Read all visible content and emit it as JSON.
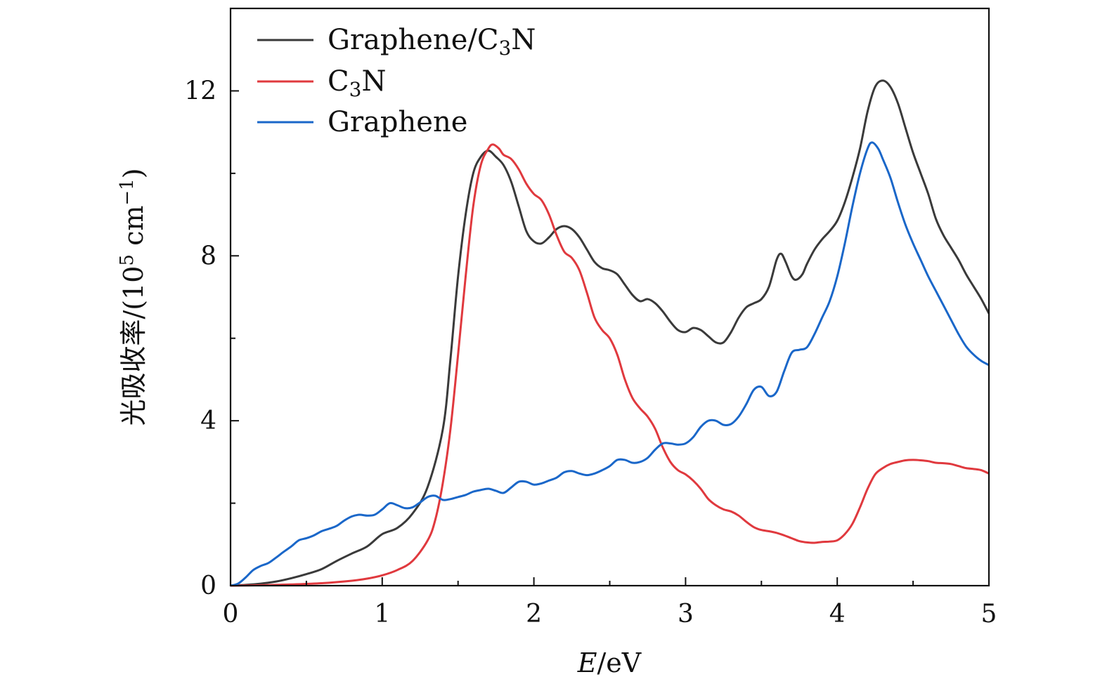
{
  "chart_data": {
    "type": "line",
    "title": "",
    "xlabel": {
      "italic": "E",
      "unit": "/eV"
    },
    "ylabel": {
      "main": "光吸收率/(10",
      "sup_exp": "5",
      "tail": " cm",
      "sup_inv": "−1",
      "close": ")"
    },
    "xlim": [
      0,
      5
    ],
    "ylim": [
      0,
      14
    ],
    "x_ticks": [
      0,
      1,
      2,
      3,
      4,
      5
    ],
    "x_tick_labels": [
      "0",
      "1",
      "2",
      "3",
      "4",
      "5"
    ],
    "y_ticks": [
      0,
      4,
      8,
      12
    ],
    "y_tick_labels": [
      "0",
      "4",
      "8",
      "12"
    ],
    "grid": false,
    "legend_position": "top-left",
    "series": [
      {
        "name": "Graphene/C3N",
        "legend": {
          "pre": "Graphene/C",
          "sub": "3",
          "post": "N"
        },
        "color": "#3a3a3a",
        "points": [
          [
            0,
            0
          ],
          [
            0.1,
            0.02
          ],
          [
            0.2,
            0.05
          ],
          [
            0.3,
            0.1
          ],
          [
            0.4,
            0.18
          ],
          [
            0.5,
            0.28
          ],
          [
            0.6,
            0.4
          ],
          [
            0.7,
            0.6
          ],
          [
            0.8,
            0.78
          ],
          [
            0.9,
            0.95
          ],
          [
            1.0,
            1.25
          ],
          [
            1.1,
            1.4
          ],
          [
            1.2,
            1.75
          ],
          [
            1.3,
            2.4
          ],
          [
            1.4,
            3.8
          ],
          [
            1.45,
            5.5
          ],
          [
            1.5,
            7.5
          ],
          [
            1.55,
            9.0
          ],
          [
            1.6,
            10.0
          ],
          [
            1.65,
            10.4
          ],
          [
            1.7,
            10.55
          ],
          [
            1.75,
            10.4
          ],
          [
            1.8,
            10.2
          ],
          [
            1.85,
            9.8
          ],
          [
            1.9,
            9.2
          ],
          [
            1.95,
            8.6
          ],
          [
            2.0,
            8.35
          ],
          [
            2.05,
            8.3
          ],
          [
            2.1,
            8.45
          ],
          [
            2.15,
            8.65
          ],
          [
            2.2,
            8.72
          ],
          [
            2.25,
            8.65
          ],
          [
            2.3,
            8.45
          ],
          [
            2.35,
            8.15
          ],
          [
            2.4,
            7.85
          ],
          [
            2.45,
            7.7
          ],
          [
            2.5,
            7.65
          ],
          [
            2.55,
            7.55
          ],
          [
            2.6,
            7.3
          ],
          [
            2.65,
            7.05
          ],
          [
            2.7,
            6.9
          ],
          [
            2.75,
            6.95
          ],
          [
            2.8,
            6.85
          ],
          [
            2.85,
            6.65
          ],
          [
            2.9,
            6.4
          ],
          [
            2.95,
            6.2
          ],
          [
            3.0,
            6.15
          ],
          [
            3.05,
            6.25
          ],
          [
            3.1,
            6.2
          ],
          [
            3.15,
            6.05
          ],
          [
            3.2,
            5.9
          ],
          [
            3.25,
            5.9
          ],
          [
            3.3,
            6.15
          ],
          [
            3.35,
            6.5
          ],
          [
            3.4,
            6.75
          ],
          [
            3.45,
            6.85
          ],
          [
            3.5,
            6.95
          ],
          [
            3.55,
            7.25
          ],
          [
            3.6,
            7.9
          ],
          [
            3.63,
            8.05
          ],
          [
            3.66,
            7.85
          ],
          [
            3.7,
            7.5
          ],
          [
            3.73,
            7.42
          ],
          [
            3.77,
            7.55
          ],
          [
            3.8,
            7.8
          ],
          [
            3.85,
            8.15
          ],
          [
            3.9,
            8.4
          ],
          [
            3.95,
            8.6
          ],
          [
            4.0,
            8.85
          ],
          [
            4.05,
            9.3
          ],
          [
            4.1,
            9.9
          ],
          [
            4.15,
            10.6
          ],
          [
            4.2,
            11.5
          ],
          [
            4.25,
            12.1
          ],
          [
            4.3,
            12.25
          ],
          [
            4.35,
            12.1
          ],
          [
            4.4,
            11.7
          ],
          [
            4.45,
            11.1
          ],
          [
            4.5,
            10.5
          ],
          [
            4.55,
            10.0
          ],
          [
            4.6,
            9.5
          ],
          [
            4.65,
            8.9
          ],
          [
            4.7,
            8.5
          ],
          [
            4.75,
            8.2
          ],
          [
            4.8,
            7.9
          ],
          [
            4.85,
            7.55
          ],
          [
            4.9,
            7.25
          ],
          [
            4.95,
            6.95
          ],
          [
            5.0,
            6.6
          ]
        ]
      },
      {
        "name": "C3N",
        "legend": {
          "pre": "C",
          "sub": "3",
          "post": "N"
        },
        "color": "#e0393e",
        "points": [
          [
            0,
            0
          ],
          [
            0.2,
            0.01
          ],
          [
            0.4,
            0.03
          ],
          [
            0.6,
            0.06
          ],
          [
            0.8,
            0.12
          ],
          [
            0.9,
            0.17
          ],
          [
            1.0,
            0.25
          ],
          [
            1.1,
            0.38
          ],
          [
            1.2,
            0.6
          ],
          [
            1.3,
            1.1
          ],
          [
            1.35,
            1.6
          ],
          [
            1.4,
            2.5
          ],
          [
            1.45,
            3.8
          ],
          [
            1.5,
            5.6
          ],
          [
            1.55,
            7.5
          ],
          [
            1.6,
            9.2
          ],
          [
            1.65,
            10.2
          ],
          [
            1.7,
            10.6
          ],
          [
            1.73,
            10.7
          ],
          [
            1.77,
            10.6
          ],
          [
            1.8,
            10.45
          ],
          [
            1.85,
            10.35
          ],
          [
            1.9,
            10.1
          ],
          [
            1.95,
            9.75
          ],
          [
            2.0,
            9.5
          ],
          [
            2.05,
            9.35
          ],
          [
            2.1,
            9.0
          ],
          [
            2.15,
            8.5
          ],
          [
            2.2,
            8.1
          ],
          [
            2.25,
            7.95
          ],
          [
            2.3,
            7.65
          ],
          [
            2.35,
            7.1
          ],
          [
            2.4,
            6.5
          ],
          [
            2.45,
            6.2
          ],
          [
            2.5,
            6.0
          ],
          [
            2.55,
            5.6
          ],
          [
            2.6,
            5.0
          ],
          [
            2.65,
            4.55
          ],
          [
            2.7,
            4.3
          ],
          [
            2.75,
            4.1
          ],
          [
            2.8,
            3.8
          ],
          [
            2.85,
            3.35
          ],
          [
            2.9,
            3.0
          ],
          [
            2.95,
            2.8
          ],
          [
            3.0,
            2.7
          ],
          [
            3.05,
            2.55
          ],
          [
            3.1,
            2.35
          ],
          [
            3.15,
            2.1
          ],
          [
            3.2,
            1.95
          ],
          [
            3.25,
            1.85
          ],
          [
            3.3,
            1.8
          ],
          [
            3.35,
            1.7
          ],
          [
            3.4,
            1.55
          ],
          [
            3.45,
            1.42
          ],
          [
            3.5,
            1.35
          ],
          [
            3.55,
            1.32
          ],
          [
            3.6,
            1.28
          ],
          [
            3.65,
            1.22
          ],
          [
            3.7,
            1.15
          ],
          [
            3.75,
            1.08
          ],
          [
            3.8,
            1.05
          ],
          [
            3.85,
            1.04
          ],
          [
            3.9,
            1.06
          ],
          [
            3.95,
            1.07
          ],
          [
            4.0,
            1.1
          ],
          [
            4.05,
            1.25
          ],
          [
            4.1,
            1.5
          ],
          [
            4.15,
            1.9
          ],
          [
            4.2,
            2.35
          ],
          [
            4.25,
            2.7
          ],
          [
            4.3,
            2.85
          ],
          [
            4.35,
            2.95
          ],
          [
            4.4,
            3.0
          ],
          [
            4.45,
            3.04
          ],
          [
            4.5,
            3.05
          ],
          [
            4.55,
            3.04
          ],
          [
            4.6,
            3.02
          ],
          [
            4.65,
            2.98
          ],
          [
            4.7,
            2.97
          ],
          [
            4.75,
            2.95
          ],
          [
            4.8,
            2.9
          ],
          [
            4.85,
            2.85
          ],
          [
            4.9,
            2.83
          ],
          [
            4.95,
            2.8
          ],
          [
            5.0,
            2.72
          ]
        ]
      },
      {
        "name": "Graphene",
        "legend": {
          "pre": "Graphene",
          "sub": "",
          "post": ""
        },
        "color": "#1a67c9",
        "points": [
          [
            0,
            0
          ],
          [
            0.05,
            0.05
          ],
          [
            0.1,
            0.2
          ],
          [
            0.15,
            0.38
          ],
          [
            0.2,
            0.48
          ],
          [
            0.25,
            0.55
          ],
          [
            0.3,
            0.68
          ],
          [
            0.35,
            0.82
          ],
          [
            0.4,
            0.95
          ],
          [
            0.45,
            1.1
          ],
          [
            0.5,
            1.15
          ],
          [
            0.55,
            1.22
          ],
          [
            0.6,
            1.32
          ],
          [
            0.65,
            1.38
          ],
          [
            0.7,
            1.45
          ],
          [
            0.75,
            1.58
          ],
          [
            0.8,
            1.68
          ],
          [
            0.85,
            1.72
          ],
          [
            0.9,
            1.7
          ],
          [
            0.95,
            1.72
          ],
          [
            1.0,
            1.85
          ],
          [
            1.05,
            2.0
          ],
          [
            1.1,
            1.95
          ],
          [
            1.15,
            1.88
          ],
          [
            1.2,
            1.9
          ],
          [
            1.25,
            2.02
          ],
          [
            1.3,
            2.15
          ],
          [
            1.35,
            2.18
          ],
          [
            1.4,
            2.08
          ],
          [
            1.45,
            2.1
          ],
          [
            1.5,
            2.15
          ],
          [
            1.55,
            2.2
          ],
          [
            1.6,
            2.28
          ],
          [
            1.65,
            2.32
          ],
          [
            1.7,
            2.35
          ],
          [
            1.75,
            2.3
          ],
          [
            1.8,
            2.25
          ],
          [
            1.85,
            2.38
          ],
          [
            1.9,
            2.52
          ],
          [
            1.95,
            2.52
          ],
          [
            2.0,
            2.45
          ],
          [
            2.05,
            2.48
          ],
          [
            2.1,
            2.55
          ],
          [
            2.15,
            2.62
          ],
          [
            2.2,
            2.75
          ],
          [
            2.25,
            2.78
          ],
          [
            2.3,
            2.72
          ],
          [
            2.35,
            2.68
          ],
          [
            2.4,
            2.72
          ],
          [
            2.45,
            2.8
          ],
          [
            2.5,
            2.9
          ],
          [
            2.55,
            3.05
          ],
          [
            2.6,
            3.05
          ],
          [
            2.65,
            2.98
          ],
          [
            2.7,
            3.0
          ],
          [
            2.75,
            3.1
          ],
          [
            2.8,
            3.3
          ],
          [
            2.85,
            3.45
          ],
          [
            2.9,
            3.45
          ],
          [
            2.95,
            3.42
          ],
          [
            3.0,
            3.45
          ],
          [
            3.05,
            3.6
          ],
          [
            3.1,
            3.85
          ],
          [
            3.15,
            4.0
          ],
          [
            3.2,
            4.0
          ],
          [
            3.25,
            3.9
          ],
          [
            3.3,
            3.92
          ],
          [
            3.35,
            4.1
          ],
          [
            3.4,
            4.4
          ],
          [
            3.45,
            4.75
          ],
          [
            3.5,
            4.82
          ],
          [
            3.55,
            4.6
          ],
          [
            3.6,
            4.7
          ],
          [
            3.65,
            5.2
          ],
          [
            3.7,
            5.65
          ],
          [
            3.75,
            5.72
          ],
          [
            3.8,
            5.78
          ],
          [
            3.85,
            6.1
          ],
          [
            3.9,
            6.5
          ],
          [
            3.95,
            6.9
          ],
          [
            4.0,
            7.5
          ],
          [
            4.05,
            8.3
          ],
          [
            4.1,
            9.2
          ],
          [
            4.15,
            10.0
          ],
          [
            4.2,
            10.6
          ],
          [
            4.23,
            10.75
          ],
          [
            4.27,
            10.6
          ],
          [
            4.3,
            10.35
          ],
          [
            4.35,
            9.9
          ],
          [
            4.4,
            9.3
          ],
          [
            4.45,
            8.75
          ],
          [
            4.5,
            8.3
          ],
          [
            4.55,
            7.9
          ],
          [
            4.6,
            7.5
          ],
          [
            4.65,
            7.15
          ],
          [
            4.7,
            6.8
          ],
          [
            4.75,
            6.45
          ],
          [
            4.8,
            6.1
          ],
          [
            4.85,
            5.8
          ],
          [
            4.9,
            5.6
          ],
          [
            4.95,
            5.45
          ],
          [
            5.0,
            5.35
          ]
        ]
      }
    ]
  }
}
